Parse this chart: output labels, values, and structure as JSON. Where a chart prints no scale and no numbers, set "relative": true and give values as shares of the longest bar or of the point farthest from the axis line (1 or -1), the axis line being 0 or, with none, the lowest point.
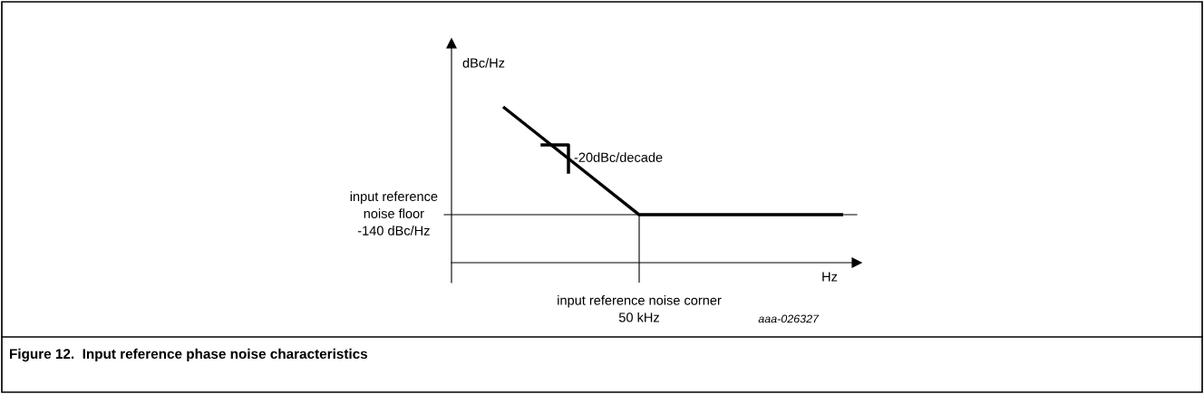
{
  "chart_data": {
    "type": "line",
    "title": "Figure 12.  Input reference phase noise characteristics",
    "xlabel": "Hz",
    "ylabel": "dBc/Hz",
    "relative": true,
    "categories": [
      null,
      null,
      null,
      null,
      null,
      null
    ],
    "series": [
      {
        "color": "#000000",
        "values": [
          1,
          0.654,
          0.308,
          0.308,
          0.308,
          0.308
        ]
      }
    ],
    "ref_lines": [
      {
        "axis": "y",
        "value": 0.308,
        "label": "input reference\nnoise floor\n-140 dBc/Hz",
        "color": "#000000"
      }
    ],
    "annotations": [
      "-20dBc/decade",
      "aaa-026327",
      "input reference noise corner\n50 kHz"
    ],
    "grid": false,
    "legend": false,
    "marker": "none",
    "line_style": "solid"
  }
}
